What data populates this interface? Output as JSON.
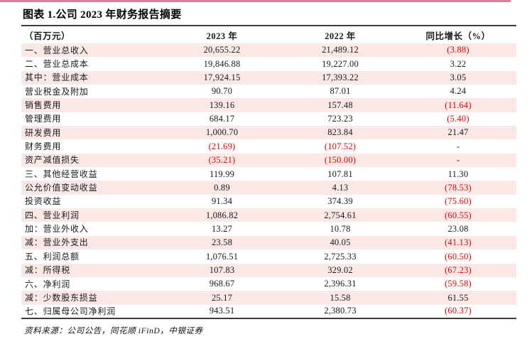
{
  "page": {
    "title": "图表 1.公司 2023 年财务报告摘要",
    "source_note": "资料来源：公司公告，同花顺 iFinD，中银证券",
    "colors": {
      "accent_line": "#d5839a",
      "row_stripe": "#f9e8e6",
      "negative_value": "#e60000",
      "table_rule": "#3d3d3d"
    }
  },
  "table": {
    "columns": [
      "（百万元）",
      "2023 年",
      "2022 年",
      "同比增长（%）"
    ],
    "rows": [
      {
        "label": "一、营业总收入",
        "y2023": "20,655.22",
        "y2022": "21,489.12",
        "yoy": "(3.88)"
      },
      {
        "label": "二、营业总成本",
        "y2023": "19,846.88",
        "y2022": "19,227.00",
        "yoy": "3.22"
      },
      {
        "label": "其中：营业成本",
        "y2023": "17,924.15",
        "y2022": "17,393.22",
        "yoy": "3.05"
      },
      {
        "label": "营业税金及附加",
        "y2023": "90.70",
        "y2022": "87.01",
        "yoy": "4.24"
      },
      {
        "label": "销售费用",
        "y2023": "139.16",
        "y2022": "157.48",
        "yoy": "(11.64)"
      },
      {
        "label": "管理费用",
        "y2023": "684.17",
        "y2022": "723.23",
        "yoy": "(5.40)"
      },
      {
        "label": "研发费用",
        "y2023": "1,000.70",
        "y2022": "823.84",
        "yoy": "21.47"
      },
      {
        "label": "财务费用",
        "y2023": "(21.69)",
        "y2022": "(107.52)",
        "yoy": "-"
      },
      {
        "label": "资产减值损失",
        "y2023": "(35.21)",
        "y2022": "(150.00)",
        "yoy": "-"
      },
      {
        "label": "三、其他经营收益",
        "y2023": "119.99",
        "y2022": "107.81",
        "yoy": "11.30"
      },
      {
        "label": "公允价值变动收益",
        "y2023": "0.89",
        "y2022": "4.13",
        "yoy": "(78.53)"
      },
      {
        "label": "投资收益",
        "y2023": "91.34",
        "y2022": "374.39",
        "yoy": "(75.60)"
      },
      {
        "label": "四、营业利润",
        "y2023": "1,086.82",
        "y2022": "2,754.61",
        "yoy": "(60.55)"
      },
      {
        "label": "加：营业外收入",
        "y2023": "13.27",
        "y2022": "10.78",
        "yoy": "23.08"
      },
      {
        "label": "减：营业外支出",
        "y2023": "23.58",
        "y2022": "40.05",
        "yoy": "(41.13)"
      },
      {
        "label": "五、利润总额",
        "y2023": "1,076.51",
        "y2022": "2,725.33",
        "yoy": "(60.50)"
      },
      {
        "label": "减：所得税",
        "y2023": "107.83",
        "y2022": "329.02",
        "yoy": "(67.23)"
      },
      {
        "label": "六、净利润",
        "y2023": "968.67",
        "y2022": "2,396.31",
        "yoy": "(59.58)"
      },
      {
        "label": "减：少数股东损益",
        "y2023": "25.17",
        "y2022": "15.58",
        "yoy": "61.55"
      },
      {
        "label": "七、归属母公司净利润",
        "y2023": "943.51",
        "y2022": "2,380.73",
        "yoy": "(60.37)"
      }
    ]
  }
}
